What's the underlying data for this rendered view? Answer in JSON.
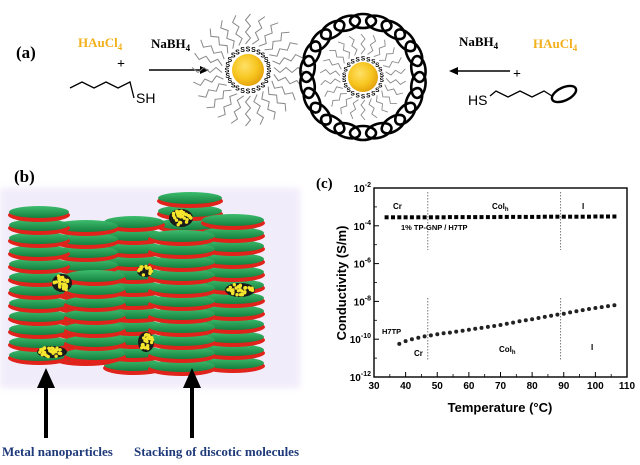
{
  "panel_a": {
    "label": "(a)",
    "left_reagent": "HAuCl",
    "left_reagent_sub": "4",
    "left_plus": "+",
    "left_thiol": "SH",
    "left_reductant": "NaBH",
    "left_reductant_sub": "4",
    "sulfur_atom": "S",
    "right_reductant": "NaBH",
    "right_reductant_sub": "4",
    "right_reagent": "HAuCl",
    "right_reagent_sub": "4",
    "right_plus": "+",
    "right_thiol": "HS"
  },
  "panel_b": {
    "label": "(b)",
    "caption_left": "Metal nanoparticles",
    "caption_right": "Stacking of discotic molecules"
  },
  "panel_c": {
    "label": "(c)",
    "phase_top": [
      "Cr",
      "Col",
      "I"
    ],
    "phase_bottom": [
      "Cr",
      "Col",
      "I"
    ],
    "phase_sub": "h",
    "upper_series_label": "1% TP-GNP / H7TP",
    "lower_series_label": "H7TP"
  },
  "colors": {
    "gold": "#f2b01c",
    "annotation_navy": "#1f3a7a",
    "disc_green": "#1e9a52",
    "disc_red": "#e0231b"
  },
  "chart_data": {
    "type": "scatter",
    "title": "",
    "xlabel": "Temperature (°C)",
    "ylabel": "Conductivity (S/m)",
    "xlim": [
      30,
      110
    ],
    "ylim_log10": [
      -12,
      -2
    ],
    "xticks": [
      30,
      40,
      50,
      60,
      70,
      80,
      90,
      100,
      110
    ],
    "yticks_log10": [
      -12,
      -10,
      -8,
      -6,
      -4,
      -2
    ],
    "transitions": [
      47,
      89
    ],
    "series": [
      {
        "name": "1% TP-GNP / H7TP",
        "x": [
          34,
          36,
          38,
          40,
          42,
          44,
          46,
          48,
          50,
          52,
          54,
          56,
          58,
          60,
          62,
          64,
          66,
          68,
          70,
          72,
          74,
          76,
          78,
          80,
          82,
          84,
          86,
          88,
          90,
          92,
          94,
          96,
          98,
          100,
          102,
          104,
          106
        ],
        "log10_y": [
          -3.55,
          -3.55,
          -3.55,
          -3.55,
          -3.55,
          -3.55,
          -3.55,
          -3.55,
          -3.55,
          -3.55,
          -3.54,
          -3.54,
          -3.54,
          -3.54,
          -3.54,
          -3.54,
          -3.54,
          -3.54,
          -3.53,
          -3.53,
          -3.53,
          -3.53,
          -3.53,
          -3.53,
          -3.53,
          -3.52,
          -3.52,
          -3.52,
          -3.52,
          -3.52,
          -3.52,
          -3.52,
          -3.52,
          -3.51,
          -3.51,
          -3.51,
          -3.51
        ]
      },
      {
        "name": "H7TP",
        "x": [
          38,
          40,
          42,
          44,
          46,
          48,
          50,
          52,
          54,
          56,
          58,
          60,
          62,
          64,
          66,
          68,
          70,
          72,
          74,
          76,
          78,
          80,
          82,
          84,
          86,
          88,
          90,
          92,
          94,
          96,
          98,
          100,
          102,
          104,
          106
        ],
        "log10_y": [
          -10.25,
          -10.1,
          -10.0,
          -9.92,
          -9.85,
          -9.8,
          -9.74,
          -9.69,
          -9.65,
          -9.6,
          -9.55,
          -9.5,
          -9.45,
          -9.4,
          -9.35,
          -9.3,
          -9.25,
          -9.18,
          -9.12,
          -9.05,
          -9.0,
          -8.94,
          -8.88,
          -8.82,
          -8.76,
          -8.7,
          -8.65,
          -8.58,
          -8.52,
          -8.46,
          -8.4,
          -8.35,
          -8.3,
          -8.25,
          -8.2
        ]
      }
    ]
  }
}
